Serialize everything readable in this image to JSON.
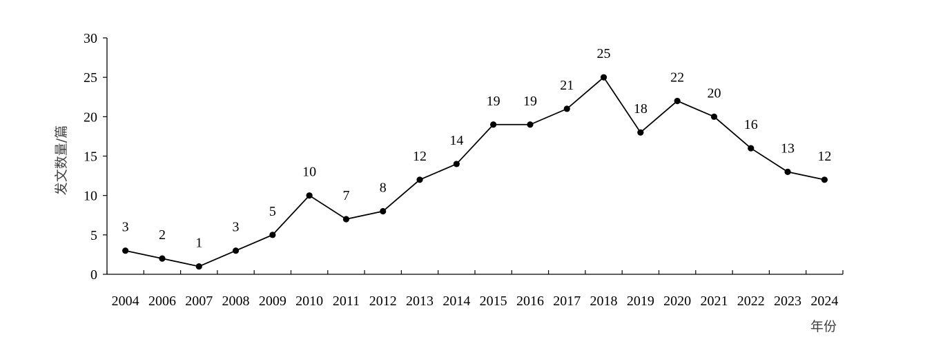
{
  "chart_data": {
    "type": "line",
    "title": "",
    "xlabel": "年份",
    "ylabel": "发文数量/篇",
    "ylim": [
      0,
      30
    ],
    "yticks": [
      0,
      5,
      10,
      15,
      20,
      25,
      30
    ],
    "grid": false,
    "categories": [
      "2004",
      "2006",
      "2007",
      "2008",
      "2009",
      "2010",
      "2011",
      "2012",
      "2013",
      "2014",
      "2015",
      "2016",
      "2017",
      "2018",
      "2019",
      "2020",
      "2021",
      "2022",
      "2023",
      "2024"
    ],
    "series": [
      {
        "values": [
          3,
          2,
          1,
          3,
          5,
          10,
          7,
          8,
          12,
          14,
          19,
          19,
          21,
          25,
          18,
          22,
          20,
          16,
          13,
          12
        ]
      }
    ],
    "colors": {
      "line": "#000000",
      "marker": "#000000",
      "axis": "#000000"
    }
  }
}
